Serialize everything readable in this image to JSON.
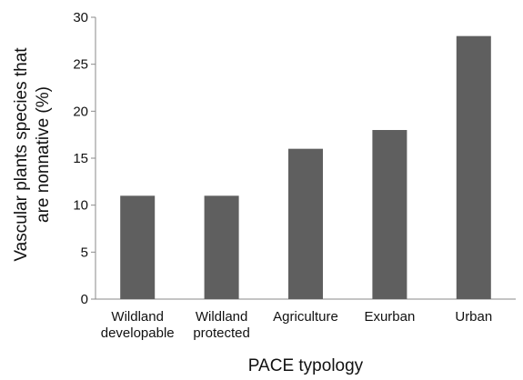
{
  "chart_data": {
    "type": "bar",
    "title": "",
    "xlabel": "PACE typology",
    "ylabel_lines": [
      "Vascular plants species that",
      "are nonnative (%)"
    ],
    "categories": [
      [
        "Wildland",
        "developable"
      ],
      [
        "Wildland",
        "protected"
      ],
      [
        "Agriculture"
      ],
      [
        "Exurban"
      ],
      [
        "Urban"
      ]
    ],
    "values": [
      11,
      11,
      16,
      18,
      28
    ],
    "ylim": [
      0,
      30
    ],
    "yticks": [
      "0",
      "5",
      "10",
      "15",
      "20",
      "25",
      "30"
    ],
    "grid": false,
    "legend": "none",
    "bar_color": "#5f5f5f",
    "axis_color": "#8a8a8a"
  }
}
